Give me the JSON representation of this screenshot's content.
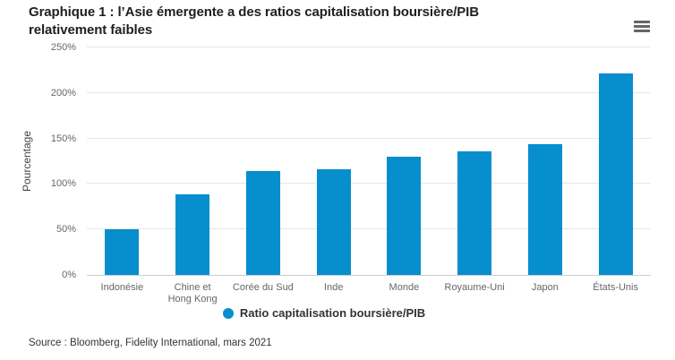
{
  "header": {
    "title_line1": "Graphique 1 : l’Asie émergente a des ratios capitalisation boursière/PIB",
    "title_line2": "relativement faibles",
    "menu_icon": "hamburger-menu-icon"
  },
  "chart_data": {
    "type": "bar",
    "categories": [
      "Indonésie",
      "Chine et Hong Kong",
      "Corée du Sud",
      "Inde",
      "Monde",
      "Royaume-Uni",
      "Japon",
      "États-Unis"
    ],
    "values": [
      50,
      89,
      114,
      116,
      130,
      136,
      144,
      221
    ],
    "series_name": "Ratio capitalisation boursière/PIB",
    "title": "",
    "xlabel": "",
    "ylabel": "Pourcentage",
    "ylim": [
      0,
      250
    ],
    "ytick_step": 50,
    "ytick_suffix": "%",
    "grid": true,
    "legend_position": "bottom-center",
    "bar_color": "#078ecd"
  },
  "legend": {
    "label": "Ratio capitalisation boursière/PIB",
    "marker_color": "#078ecd"
  },
  "footer": {
    "source": "Source : Bloomberg, Fidelity International, mars 2021"
  },
  "colors": {
    "bar": "#078ecd",
    "gridline": "#e6e6e6",
    "axis_line": "#c9ced6",
    "title_text": "#1f1f1f",
    "tick_text": "#666666",
    "legend_text": "#333333",
    "menu_icon": "#666666"
  }
}
